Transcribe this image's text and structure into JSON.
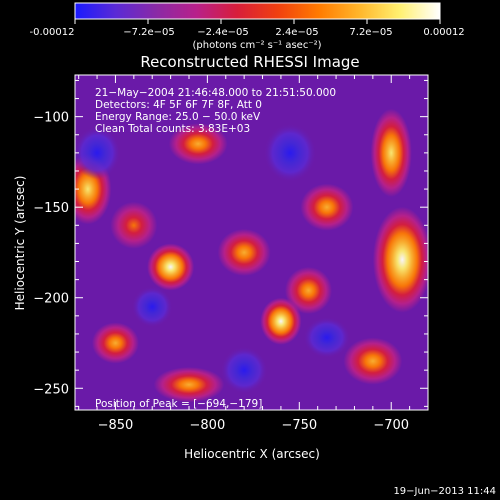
{
  "colorbar": {
    "labels": [
      "-0.00012",
      "−7.2e−05",
      "−2.4e−05",
      "2.4e−05",
      "7.2e−05",
      "0.00012"
    ],
    "unit_label": "(photons cm⁻² s⁻¹ asec⁻²)",
    "colors": [
      "#1a1aff",
      "#5a2ad6",
      "#8a2aa6",
      "#b8208a",
      "#d81e3a",
      "#f04010",
      "#ff7a00",
      "#ffb52a",
      "#fff070",
      "#ffffff"
    ]
  },
  "image": {
    "title": "Reconstructed RHESSI Image",
    "time_range": "21−May−2004 21:46:48.000 to 21:51:50.000",
    "detectors": "Detectors: 4F 5F 6F 7F 8F, Att 0",
    "energy_range": "Energy Range: 25.0 − 50.0 keV",
    "clean_counts": "Clean     Total counts: 3.83E+03",
    "peak_position": "Position of Peak = [−694,−179]",
    "background_color": "#6a1aa8"
  },
  "chart_data": {
    "type": "heatmap",
    "title": "Reconstructed RHESSI Image",
    "xlabel": "Heliocentric X (arcsec)",
    "ylabel": "Heliocentric Y (arcsec)",
    "xlim": [
      -872,
      -680
    ],
    "ylim": [
      -262,
      -77
    ],
    "x_ticks": [
      "−850",
      "−800",
      "−750",
      "−700"
    ],
    "y_ticks": [
      "−100",
      "−150",
      "−200",
      "−250"
    ],
    "colorbar_range": [
      -0.00012,
      0.00012
    ],
    "peak": [
      -694,
      -179
    ],
    "blobs": [
      {
        "x": -694,
        "y": -179,
        "intensity": 1.0,
        "sx": 10,
        "sy": 18
      },
      {
        "x": -760,
        "y": -213,
        "intensity": 0.85,
        "sx": 7,
        "sy": 8
      },
      {
        "x": -820,
        "y": -183,
        "intensity": 0.8,
        "sx": 8,
        "sy": 8
      },
      {
        "x": -865,
        "y": -140,
        "intensity": 0.55,
        "sx": 8,
        "sy": 12
      },
      {
        "x": -805,
        "y": -115,
        "intensity": 0.5,
        "sx": 10,
        "sy": 7
      },
      {
        "x": -735,
        "y": -150,
        "intensity": 0.5,
        "sx": 9,
        "sy": 8
      },
      {
        "x": -700,
        "y": -120,
        "intensity": 0.65,
        "sx": 7,
        "sy": 15
      },
      {
        "x": -780,
        "y": -175,
        "intensity": 0.45,
        "sx": 9,
        "sy": 8
      },
      {
        "x": -850,
        "y": -225,
        "intensity": 0.4,
        "sx": 8,
        "sy": 7
      },
      {
        "x": -810,
        "y": -248,
        "intensity": 0.45,
        "sx": 12,
        "sy": 6
      },
      {
        "x": -710,
        "y": -235,
        "intensity": 0.5,
        "sx": 10,
        "sy": 8
      },
      {
        "x": -745,
        "y": -196,
        "intensity": 0.35,
        "sx": 8,
        "sy": 8
      },
      {
        "x": -840,
        "y": -160,
        "intensity": 0.25,
        "sx": 8,
        "sy": 8
      },
      {
        "x": -735,
        "y": -222,
        "intensity": -0.6,
        "sx": 8,
        "sy": 7
      },
      {
        "x": -860,
        "y": -120,
        "intensity": -0.4,
        "sx": 8,
        "sy": 9
      },
      {
        "x": -755,
        "y": -120,
        "intensity": -0.35,
        "sx": 9,
        "sy": 10
      },
      {
        "x": -780,
        "y": -240,
        "intensity": -0.3,
        "sx": 8,
        "sy": 8
      },
      {
        "x": -830,
        "y": -205,
        "intensity": -0.3,
        "sx": 7,
        "sy": 7
      }
    ]
  },
  "timestamp": "19−Jun−2013 11:44"
}
